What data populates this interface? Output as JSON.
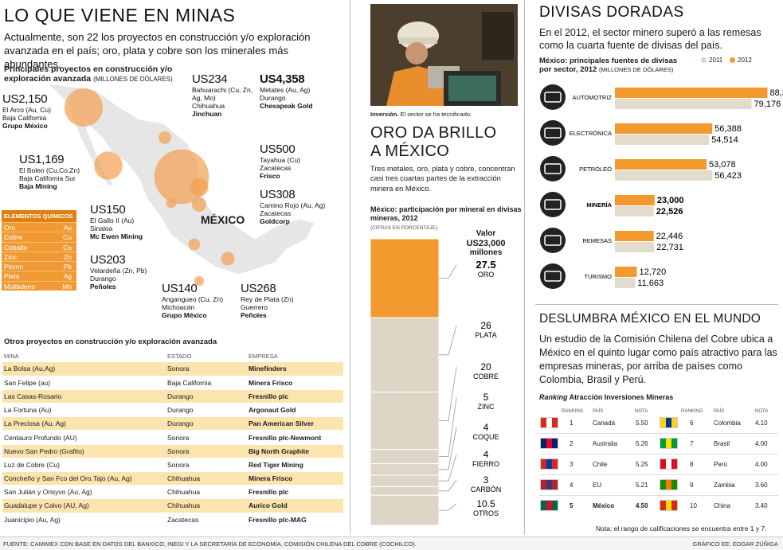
{
  "left": {
    "title": "LO QUE VIENE EN MINAS",
    "lede": "Actualmente, son 22 los proyectos en construcción y/o exploración avanzada en el país; oro, plata y cobre son los minerales más abundantes.",
    "map_title": "Principales proyectos en construcción y/o exploración avanzada",
    "map_unit": "(MILLONES DE DÓLARES)",
    "country_label": "MÉXICO",
    "projects": [
      {
        "amount": "US2,150",
        "line1": "El Arco (Au, Cu)",
        "line2": "Baja California",
        "company": "Grupo México",
        "value": 2150
      },
      {
        "amount": "US234",
        "line1": "Bahuarachi (Cu, Zn, Ag, Mo)",
        "line2": "Chihuahua",
        "company": "Jinchuan",
        "value": 234
      },
      {
        "amount": "US4,358",
        "line1": "Metates (Au, Ag)",
        "line2": "Durango",
        "company": "Chesapeak Gold",
        "value": 4358
      },
      {
        "amount": "US1,169",
        "line1": "El Boleo (Cu,Co,Zn)",
        "line2": "Baja California Sur",
        "company": "Baja Mining",
        "value": 1169
      },
      {
        "amount": "US500",
        "line1": "Tayahua (Cu)",
        "line2": "Zacatecas",
        "company": "Frisco",
        "value": 500
      },
      {
        "amount": "US308",
        "line1": "Camino Rojo (Au, Ag)",
        "line2": "Zacatecas",
        "company": "Goldcorp",
        "value": 308
      },
      {
        "amount": "US150",
        "line1": "El Gallo II (Au)",
        "line2": "Sinaloa",
        "company": "Mc Ewen Mining",
        "value": 150
      },
      {
        "amount": "US203",
        "line1": "Velardeña (Zn, Pb)",
        "line2": "Durango",
        "company": "Peñoles",
        "value": 203
      },
      {
        "amount": "US140",
        "line1": "Angangueo (Cu, Zn)",
        "line2": "Michoacán",
        "company": "Grupo México",
        "value": 140
      },
      {
        "amount": "US268",
        "line1": "Rey de Plata (Zn)",
        "line2": "Guerrero",
        "company": "Peñoles",
        "value": 268
      }
    ],
    "elements_title": "ELEMENTOS QUÍMICOS",
    "elements": [
      [
        "Oro",
        "Au"
      ],
      [
        "Cobre",
        "Cu"
      ],
      [
        "Cobalto",
        "Co"
      ],
      [
        "Zinc",
        "Zn"
      ],
      [
        "Plomo",
        "Pb"
      ],
      [
        "Plata",
        "Ag"
      ],
      [
        "Molibdeno",
        "Mo"
      ]
    ],
    "others_title": "Otros proyectos en construcción y/o exploración avanzada",
    "others_headers": [
      "MINA",
      "ESTADO",
      "EMPRESA"
    ],
    "others": [
      [
        "La Bolsa (Au,Ag)",
        "Sonora",
        "Minefinders"
      ],
      [
        "San Felipe (au)",
        "Baja California",
        "Minera Frisco"
      ],
      [
        "Las Casas-Rosario",
        "Durango",
        "Fresnillo plc"
      ],
      [
        "La Fortuna (Au)",
        "Durango",
        "Argonaut Gold"
      ],
      [
        "La Preciosa (Au, Ag)",
        "Durango",
        "Pan American Silver"
      ],
      [
        "Centauro Profundo (AU)",
        "Sonora",
        "Fresnillo plc-Newmont"
      ],
      [
        "Nuevo San Pedro (Grafito)",
        "Sonora",
        "Big North Graphite"
      ],
      [
        "Luz de Cobre (Cu)",
        "Sonora",
        "Red Tiger Mining"
      ],
      [
        "Concheño y San Fco del Oro.Tajo (Au, Ag)",
        "Chihuahua",
        "Minera Frisco"
      ],
      [
        "San Julián y Orisyvo (Au, Ag)",
        "Chihuahua",
        "Fresnillo plc"
      ],
      [
        "Guadalupe y Calvo (AU, Ag)",
        "Chihuahua",
        "Aurico Gold"
      ],
      [
        "Juanicipio (Au, Ag)",
        "Zacatecas",
        "Fresnillo plc-MAG"
      ]
    ]
  },
  "middle": {
    "caption_bold": "Inversión.",
    "caption": " El sector se ha tecnificado.",
    "title_line1": "ORO DA BRILLO",
    "title_line2": "A MÉXICO",
    "text": "Tres metales, oro, plata y cobre, concentran casi tres cuartas partes de la extracción minera en México.",
    "chart_title": "México: participación por mineral en divisas mineras, 2012",
    "chart_unit": "(CIFRAS EN PORCENTAJE)",
    "value_label_1": "Valor",
    "value_label_2": "US23,000",
    "value_label_3": "millones"
  },
  "right": {
    "title": "DIVISAS DORADAS",
    "lede": "En el 2012, el sector minero superó a las remesas como la cuarta fuente de divisas del país.",
    "chart_title_1": "México: principales fuentes de divisas",
    "chart_title_2": "por sector, 2012",
    "chart_unit": "(MILLONES DE DÓLARES)",
    "legend_2011": "2011",
    "legend_2012": "2012",
    "rank_title": "DESLUMBRA MÉXICO EN EL MUNDO",
    "rank_text": "Un estudio de la Comisión Chilena del Cobre ubica a México en el quinto lugar como país atractivo para las empresas mineras, por arriba de países como Colombia, Brasil y Perú.",
    "rank_sub_italic": "Ranking",
    "rank_sub": " Atracción Inversiones Mineras",
    "rank_headers": [
      "RANKING",
      "PAÍS",
      "NOTA"
    ],
    "rank_left": [
      [
        "1",
        "Canadá",
        "5.50"
      ],
      [
        "2",
        "Australia",
        "5.26"
      ],
      [
        "3",
        "Chile",
        "5.25"
      ],
      [
        "4",
        "EU",
        "5.21"
      ],
      [
        "5",
        "México",
        "4.50"
      ]
    ],
    "rank_right": [
      [
        "6",
        "Colombia",
        "4.10"
      ],
      [
        "7",
        "Brasil",
        "4.00"
      ],
      [
        "8",
        "Perú",
        "4.00"
      ],
      [
        "9",
        "Zambia",
        "3.60"
      ],
      [
        "10",
        "China",
        "3.40"
      ]
    ],
    "rank_note": "Nota: el rango de calificaciones se encuentra entre 1 y 7."
  },
  "footer": {
    "source": "FUENTE: CAMIMEX CON BASE EN DATOS DEL BANXICO, INEGI Y LA SECRETARÍA DE ECONOMÍA, COMISIÓN CHILENA DEL COBRE (COCHILCO).",
    "credit": "GRÁFICO EE: EDGAR ZÚÑIGA"
  },
  "colors": {
    "orange": "#f29a2e",
    "lightbar": "#e3dccd",
    "beige": "#ddd6c6"
  },
  "chart_data": [
    {
      "type": "bar",
      "title": "México: participación por mineral en divisas mineras, 2012",
      "categories": [
        "ORO",
        "PLATA",
        "COBRE",
        "ZINC",
        "COQUE",
        "FIERRO",
        "CARBÓN",
        "OTROS"
      ],
      "values": [
        27.5,
        26,
        20,
        5,
        4,
        4,
        3,
        10.5
      ],
      "labels": [
        "27.5",
        "26",
        "20",
        "5",
        "4",
        "4",
        "3",
        "10.5"
      ]
    },
    {
      "type": "bar",
      "title": "México: principales fuentes de divisas por sector, 2012",
      "categories": [
        "AUTOMOTRIZ",
        "ELECTRÓNICA",
        "PETRÓLEO",
        "MINERÍA",
        "REMESAS",
        "TURISMO"
      ],
      "series": [
        {
          "name": "2012",
          "values": [
            88377,
            56388,
            53078,
            23000,
            22446,
            12720
          ],
          "labels": [
            "88,377",
            "56,388",
            "53,078",
            "23,000",
            "22,446",
            "12,720"
          ]
        },
        {
          "name": "2011",
          "values": [
            79176,
            54514,
            56423,
            22526,
            22731,
            11663
          ],
          "labels": [
            "79,176",
            "54,514",
            "56,423",
            "22,526",
            "22,731",
            "11,663"
          ]
        }
      ]
    }
  ]
}
